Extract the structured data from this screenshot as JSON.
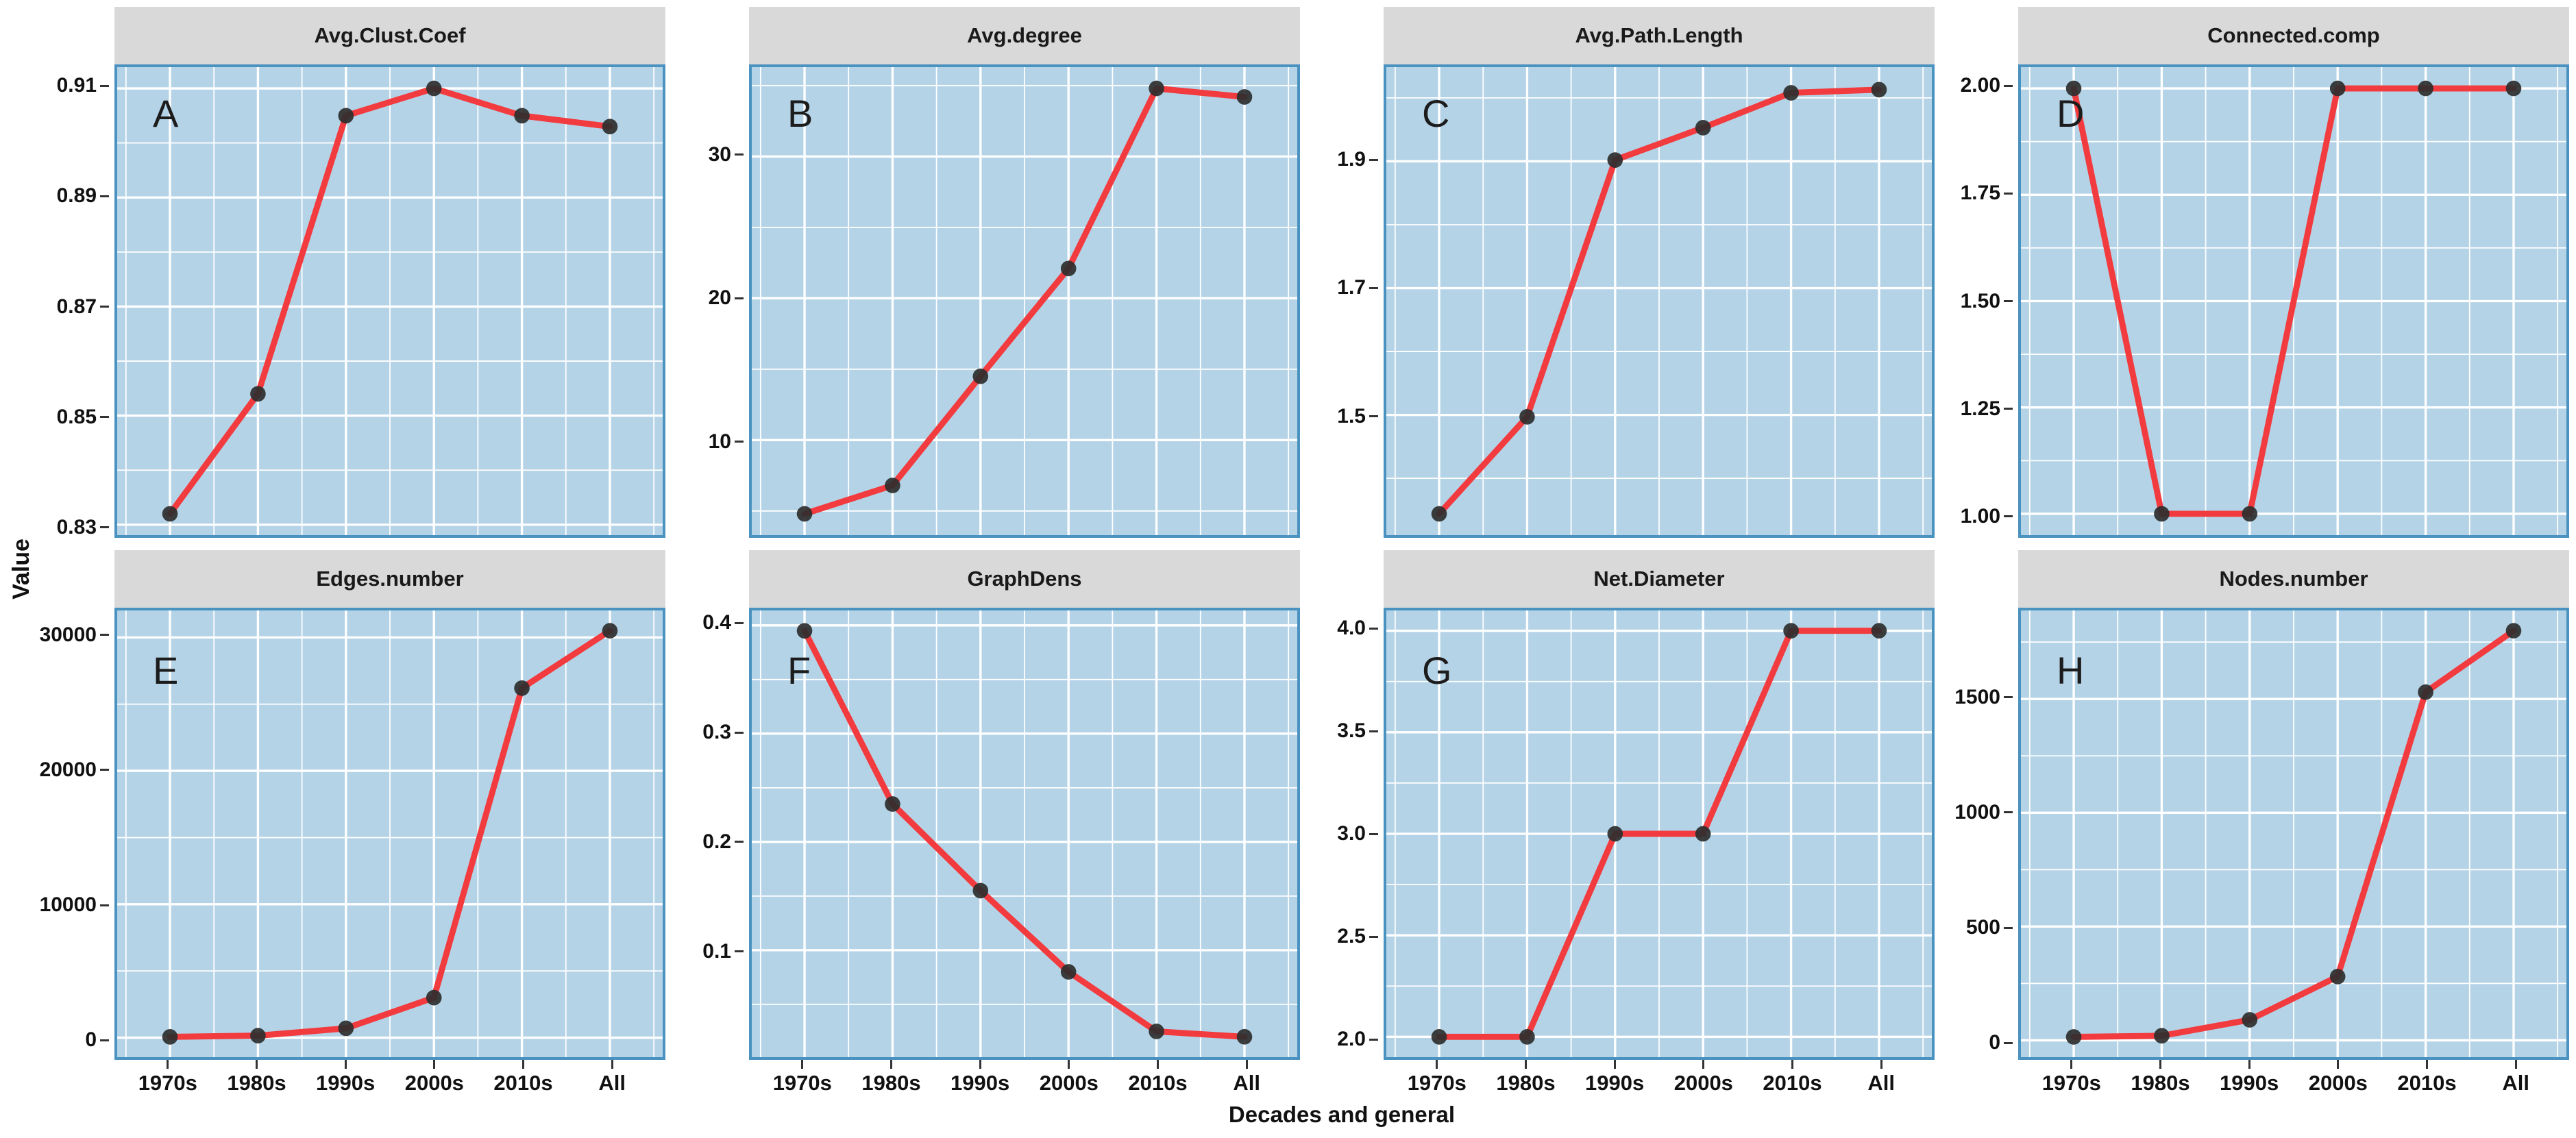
{
  "figure": {
    "y_axis_label": "Value",
    "x_axis_label": "Decades and general",
    "colors": {
      "panel_bg": "#b5d3e7",
      "panel_border": "#4a92c0",
      "strip_bg": "#d9d9d9",
      "grid": "#ffffff",
      "line": "#f23b3e",
      "point": "#2e2e2e",
      "text": "#111111"
    }
  },
  "chart_data": {
    "type": "line",
    "layout": "facet-grid-2x4",
    "legend": "none",
    "grid": "on",
    "categories": [
      "1970s",
      "1980s",
      "1990s",
      "2000s",
      "2010s",
      "All"
    ],
    "x_axis_label": "Decades and general",
    "y_axis_label": "Value",
    "facets": [
      {
        "letter": "A",
        "title": "Avg.Clust.Coef",
        "values": [
          0.832,
          0.854,
          0.905,
          0.91,
          0.905,
          0.903
        ],
        "yticks": [
          0.83,
          0.85,
          0.87,
          0.89,
          0.91
        ],
        "ytick_labels": [
          "0.83",
          "0.85",
          "0.87",
          "0.89",
          "0.91"
        ],
        "ylim": [
          0.8281,
          0.9139
        ]
      },
      {
        "letter": "B",
        "title": "Avg.degree",
        "values": [
          4.8,
          6.8,
          14.5,
          22.1,
          34.8,
          34.2
        ],
        "yticks": [
          10,
          20,
          30
        ],
        "ytick_labels": [
          "10",
          "20",
          "30"
        ],
        "ylim": [
          3.3,
          36.3
        ]
      },
      {
        "letter": "C",
        "title": "Avg.Path.Length",
        "values": [
          1.344,
          1.497,
          1.902,
          1.953,
          2.008,
          2.013
        ],
        "yticks": [
          1.5,
          1.7,
          1.9
        ],
        "ytick_labels": [
          "1.5",
          "1.7",
          "1.9"
        ],
        "ylim": [
          1.3105,
          2.0485
        ]
      },
      {
        "letter": "D",
        "title": "Connected.comp",
        "values": [
          2,
          1,
          1,
          2,
          2,
          2
        ],
        "yticks": [
          1.0,
          1.25,
          1.5,
          1.75,
          2.0
        ],
        "ytick_labels": [
          "1.00",
          "1.25",
          "1.50",
          "1.75",
          "2.00"
        ],
        "ylim": [
          0.95,
          2.05
        ]
      },
      {
        "letter": "E",
        "title": "Edges.number",
        "values": [
          60,
          150,
          700,
          3000,
          26200,
          30500
        ],
        "yticks": [
          0,
          10000,
          20000,
          30000
        ],
        "ytick_labels": [
          "0",
          "10000",
          "20000",
          "30000"
        ],
        "ylim": [
          -1462,
          32022
        ]
      },
      {
        "letter": "F",
        "title": "GraphDens",
        "values": [
          0.395,
          0.235,
          0.155,
          0.08,
          0.025,
          0.02
        ],
        "yticks": [
          0.1,
          0.2,
          0.3,
          0.4
        ],
        "ytick_labels": [
          "0.1",
          "0.2",
          "0.3",
          "0.4"
        ],
        "ylim": [
          0.0012,
          0.4138
        ]
      },
      {
        "letter": "G",
        "title": "Net.Diameter",
        "values": [
          2,
          2,
          3,
          3,
          4,
          4
        ],
        "yticks": [
          2.0,
          2.5,
          3.0,
          3.5,
          4.0
        ],
        "ytick_labels": [
          "2.0",
          "2.5",
          "3.0",
          "3.5",
          "4.0"
        ],
        "ylim": [
          1.9,
          4.1
        ]
      },
      {
        "letter": "H",
        "title": "Nodes.number",
        "values": [
          15,
          20,
          90,
          280,
          1530,
          1800
        ],
        "yticks": [
          0,
          500,
          1000,
          1500
        ],
        "ytick_labels": [
          "0",
          "500",
          "1000",
          "1500"
        ],
        "ylim": [
          -74,
          1889
        ]
      }
    ]
  }
}
